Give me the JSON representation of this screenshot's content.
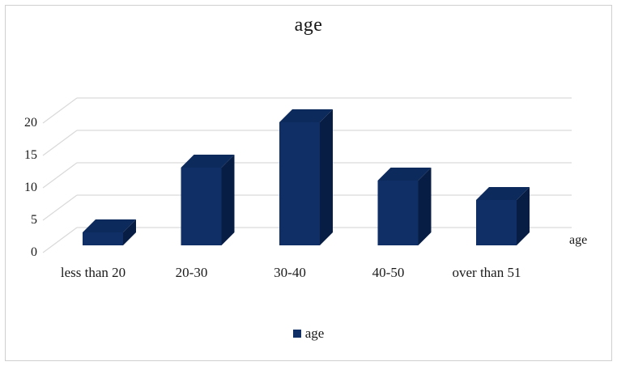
{
  "chart_data": {
    "type": "bar",
    "variant": "3d-clustered-column",
    "title": "age",
    "series_name": "age",
    "categories": [
      "less than 20",
      "20-30",
      "30-40",
      "40-50",
      "over than 51"
    ],
    "values": [
      2,
      12,
      19,
      10,
      7
    ],
    "y_ticks": [
      0,
      5,
      10,
      15,
      20
    ],
    "ylim": [
      0,
      20
    ],
    "xlabel": "",
    "ylabel": "",
    "depth_axis_label": "age",
    "grid": true,
    "legend_position": "bottom",
    "gridline_color": "#d9d9d9",
    "bar_colors": {
      "front": "#0f2f66",
      "top": "#0d2a5c",
      "side": "#081d44"
    },
    "text_color": "#1a1a1a",
    "frame_border_color": "#cfcfcf",
    "background_color": "#ffffff"
  }
}
